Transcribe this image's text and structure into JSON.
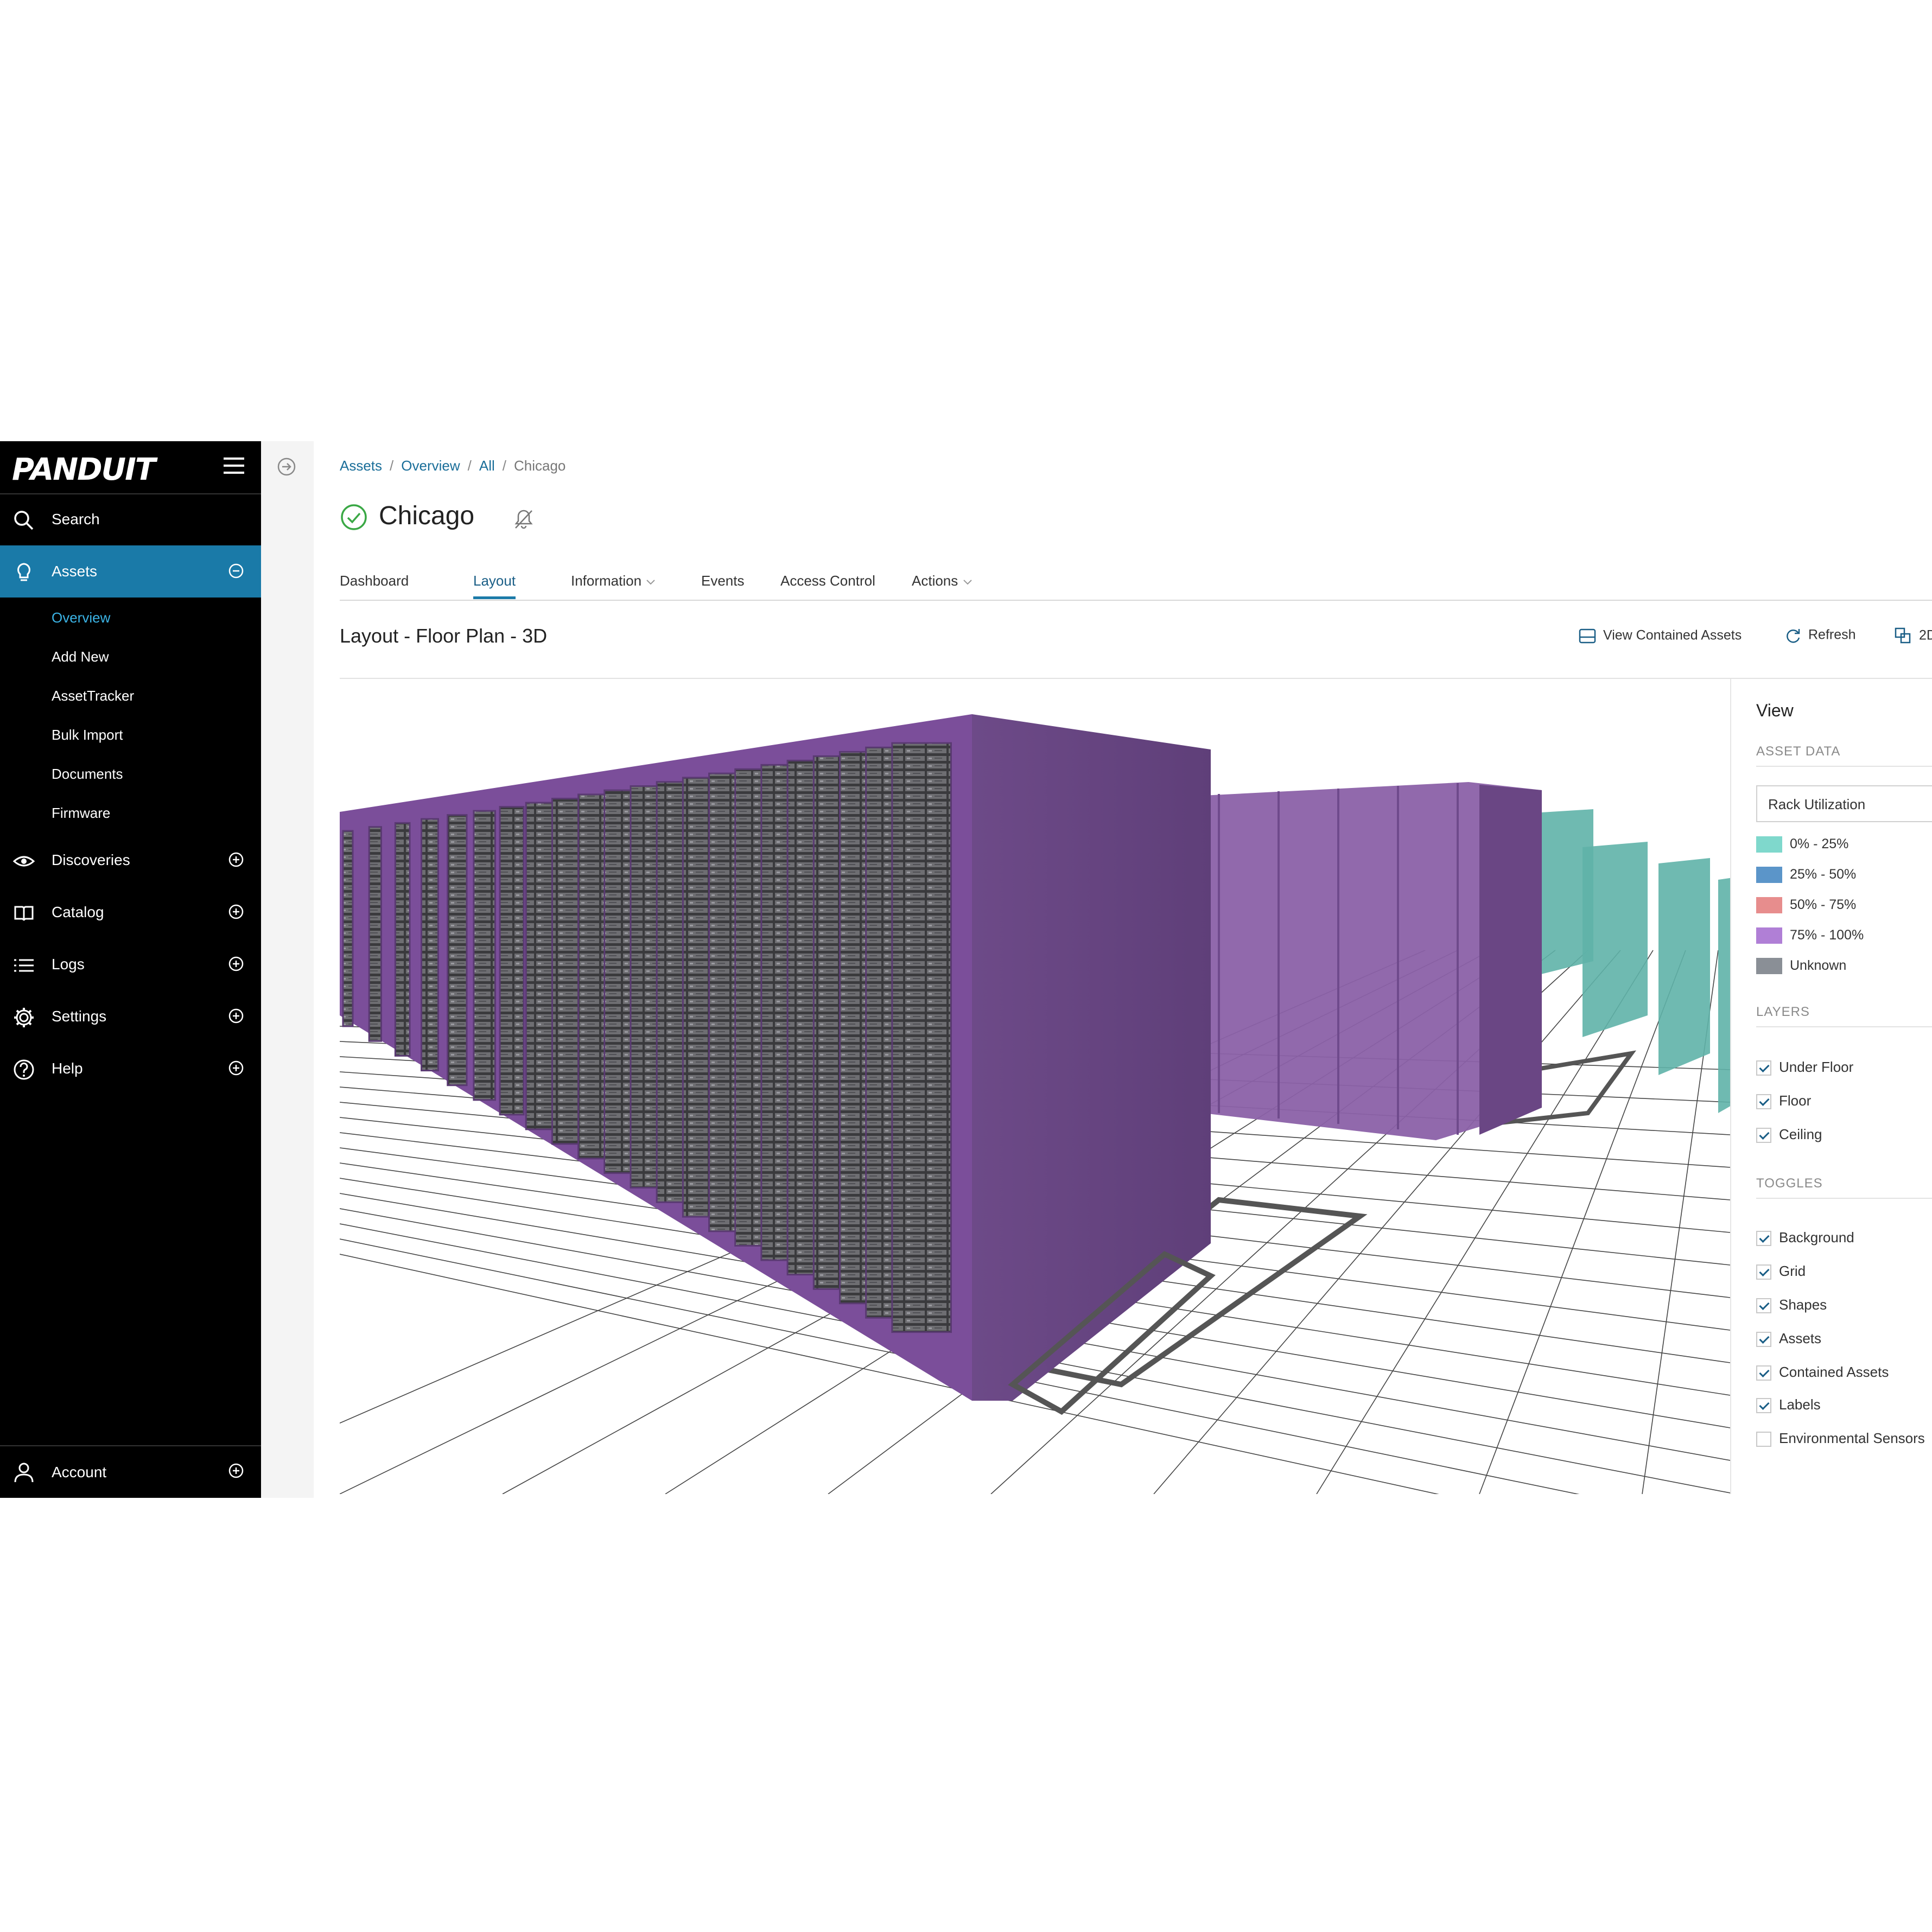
{
  "brand": {
    "logo_text": "PANDUIT"
  },
  "sidebar": {
    "search_label": "Search",
    "assets_label": "Assets",
    "assets_sub": [
      "Overview",
      "Add New",
      "AssetTracker",
      "Bulk Import",
      "Documents",
      "Firmware"
    ],
    "items": [
      {
        "label": "Discoveries",
        "icon": "eye-icon"
      },
      {
        "label": "Catalog",
        "icon": "book-icon"
      },
      {
        "label": "Logs",
        "icon": "list-icon"
      },
      {
        "label": "Settings",
        "icon": "gear-icon"
      },
      {
        "label": "Help",
        "icon": "help-icon"
      }
    ],
    "account_label": "Account",
    "active_color": "#1a7aa8",
    "current_sub_color": "#3bb4e6"
  },
  "breadcrumb": {
    "items": [
      "Assets",
      "Overview",
      "All"
    ],
    "current": "Chicago"
  },
  "page": {
    "title": "Chicago",
    "status": "ok",
    "status_color": "#3aa845"
  },
  "tabs": [
    {
      "label": "Dashboard"
    },
    {
      "label": "Layout",
      "active": true
    },
    {
      "label": "Information",
      "dropdown": true
    },
    {
      "label": "Events"
    },
    {
      "label": "Access Control"
    },
    {
      "label": "Actions",
      "dropdown": true
    }
  ],
  "section": {
    "title": "Layout - Floor Plan - 3D",
    "view_contained_label": "View Contained Assets",
    "refresh_label": "Refresh",
    "toggle_2d_label": "2D"
  },
  "panel": {
    "title": "View",
    "asset_data_heading": "ASSET DATA",
    "asset_data_selected": "Rack Utilization",
    "legend": [
      {
        "label": "0% - 25%",
        "color": "#7fd8cc"
      },
      {
        "label": "25% - 50%",
        "color": "#5b95c9"
      },
      {
        "label": "50% - 75%",
        "color": "#e78d8d"
      },
      {
        "label": "75% - 100%",
        "color": "#b07fd6"
      },
      {
        "label": "Unknown",
        "color": "#8a8f96"
      }
    ],
    "layers_heading": "LAYERS",
    "layers": [
      {
        "label": "Under Floor",
        "checked": true
      },
      {
        "label": "Floor",
        "checked": true
      },
      {
        "label": "Ceiling",
        "checked": true
      }
    ],
    "toggles_heading": "TOGGLES",
    "toggles": [
      {
        "label": "Background",
        "checked": true
      },
      {
        "label": "Grid",
        "checked": true
      },
      {
        "label": "Shapes",
        "checked": true
      },
      {
        "label": "Assets",
        "checked": true
      },
      {
        "label": "Contained Assets",
        "checked": true
      },
      {
        "label": "Labels",
        "checked": true
      },
      {
        "label": "Environmental Sensors",
        "checked": false
      }
    ]
  },
  "scene": {
    "rack_color_purple": "#7b4e9a",
    "rack_color_teal": "#5fb3a8"
  }
}
